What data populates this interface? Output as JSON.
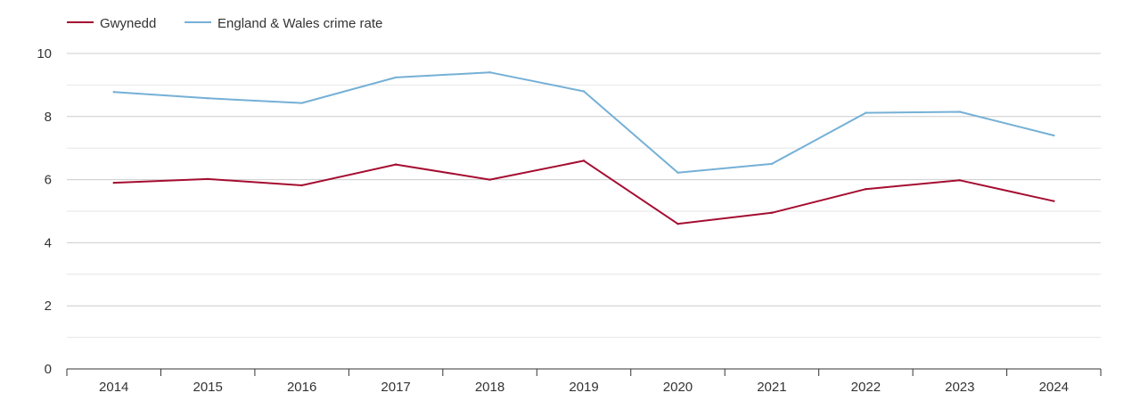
{
  "chart_data": {
    "type": "line",
    "x": [
      "2014",
      "2015",
      "2016",
      "2017",
      "2018",
      "2019",
      "2020",
      "2021",
      "2022",
      "2023",
      "2024"
    ],
    "ylim": [
      0,
      10
    ],
    "yticks": [
      "0",
      "2",
      "4",
      "6",
      "8",
      "10"
    ],
    "grid": true,
    "legend_position": "top-left",
    "series": [
      {
        "name": "Gwynedd",
        "color": "#a50d31",
        "values": [
          5.9,
          6.02,
          5.82,
          6.48,
          6.0,
          6.6,
          4.6,
          4.95,
          5.7,
          5.98,
          5.32
        ]
      },
      {
        "name": "England & Wales crime rate",
        "color": "#75b0d6",
        "values": [
          8.78,
          8.58,
          8.43,
          9.24,
          9.4,
          8.8,
          6.22,
          6.5,
          8.12,
          8.15,
          7.4
        ]
      }
    ]
  }
}
